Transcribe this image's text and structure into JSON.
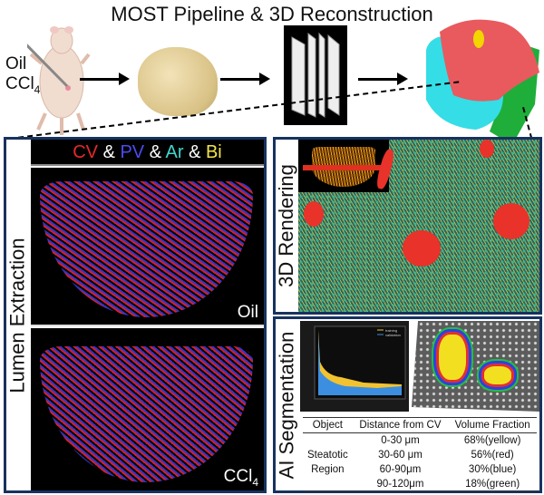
{
  "header": {
    "title": "MOST Pipeline & 3D Reconstruction"
  },
  "pipeline": {
    "treatment_lines": [
      "Oil",
      "CCl",
      "4"
    ]
  },
  "lumen": {
    "label": "Lumen Extraction",
    "legend": [
      {
        "text": "CV",
        "color": "#e8282b"
      },
      {
        "text": " & ",
        "color": "#ffffff"
      },
      {
        "text": "PV",
        "color": "#4a4cf0"
      },
      {
        "text": " & ",
        "color": "#ffffff"
      },
      {
        "text": "Ar",
        "color": "#3fd6cf"
      },
      {
        "text": " & ",
        "color": "#ffffff"
      },
      {
        "text": "Bi",
        "color": "#f2e64a"
      }
    ],
    "top_label": "Oil",
    "bottom_label_main": "CCl",
    "bottom_label_sub": "4"
  },
  "rendering": {
    "label": "3D Rendering"
  },
  "segmentation": {
    "label": "AI Segmentation",
    "chart_legend": [
      "training",
      "validation"
    ],
    "table": {
      "headers": [
        "Object",
        "Distance from CV",
        "Volume Fraction"
      ],
      "object": [
        "Steatotic",
        "Region"
      ],
      "rows": [
        {
          "distance": "0-30 μm",
          "fraction": "68%(yellow)"
        },
        {
          "distance": "30-60 μm",
          "fraction": "56%(red)"
        },
        {
          "distance": "60-90μm",
          "fraction": "30%(blue)"
        },
        {
          "distance": "90-120μm",
          "fraction": "18%(green)"
        }
      ]
    }
  },
  "colors": {
    "panel_border": "#17325e",
    "cv": "#e8282b",
    "pv": "#4a4cf0",
    "liver_red": "#e85a5e",
    "liver_cyan": "#35dde6",
    "liver_green": "#1fae3a"
  }
}
